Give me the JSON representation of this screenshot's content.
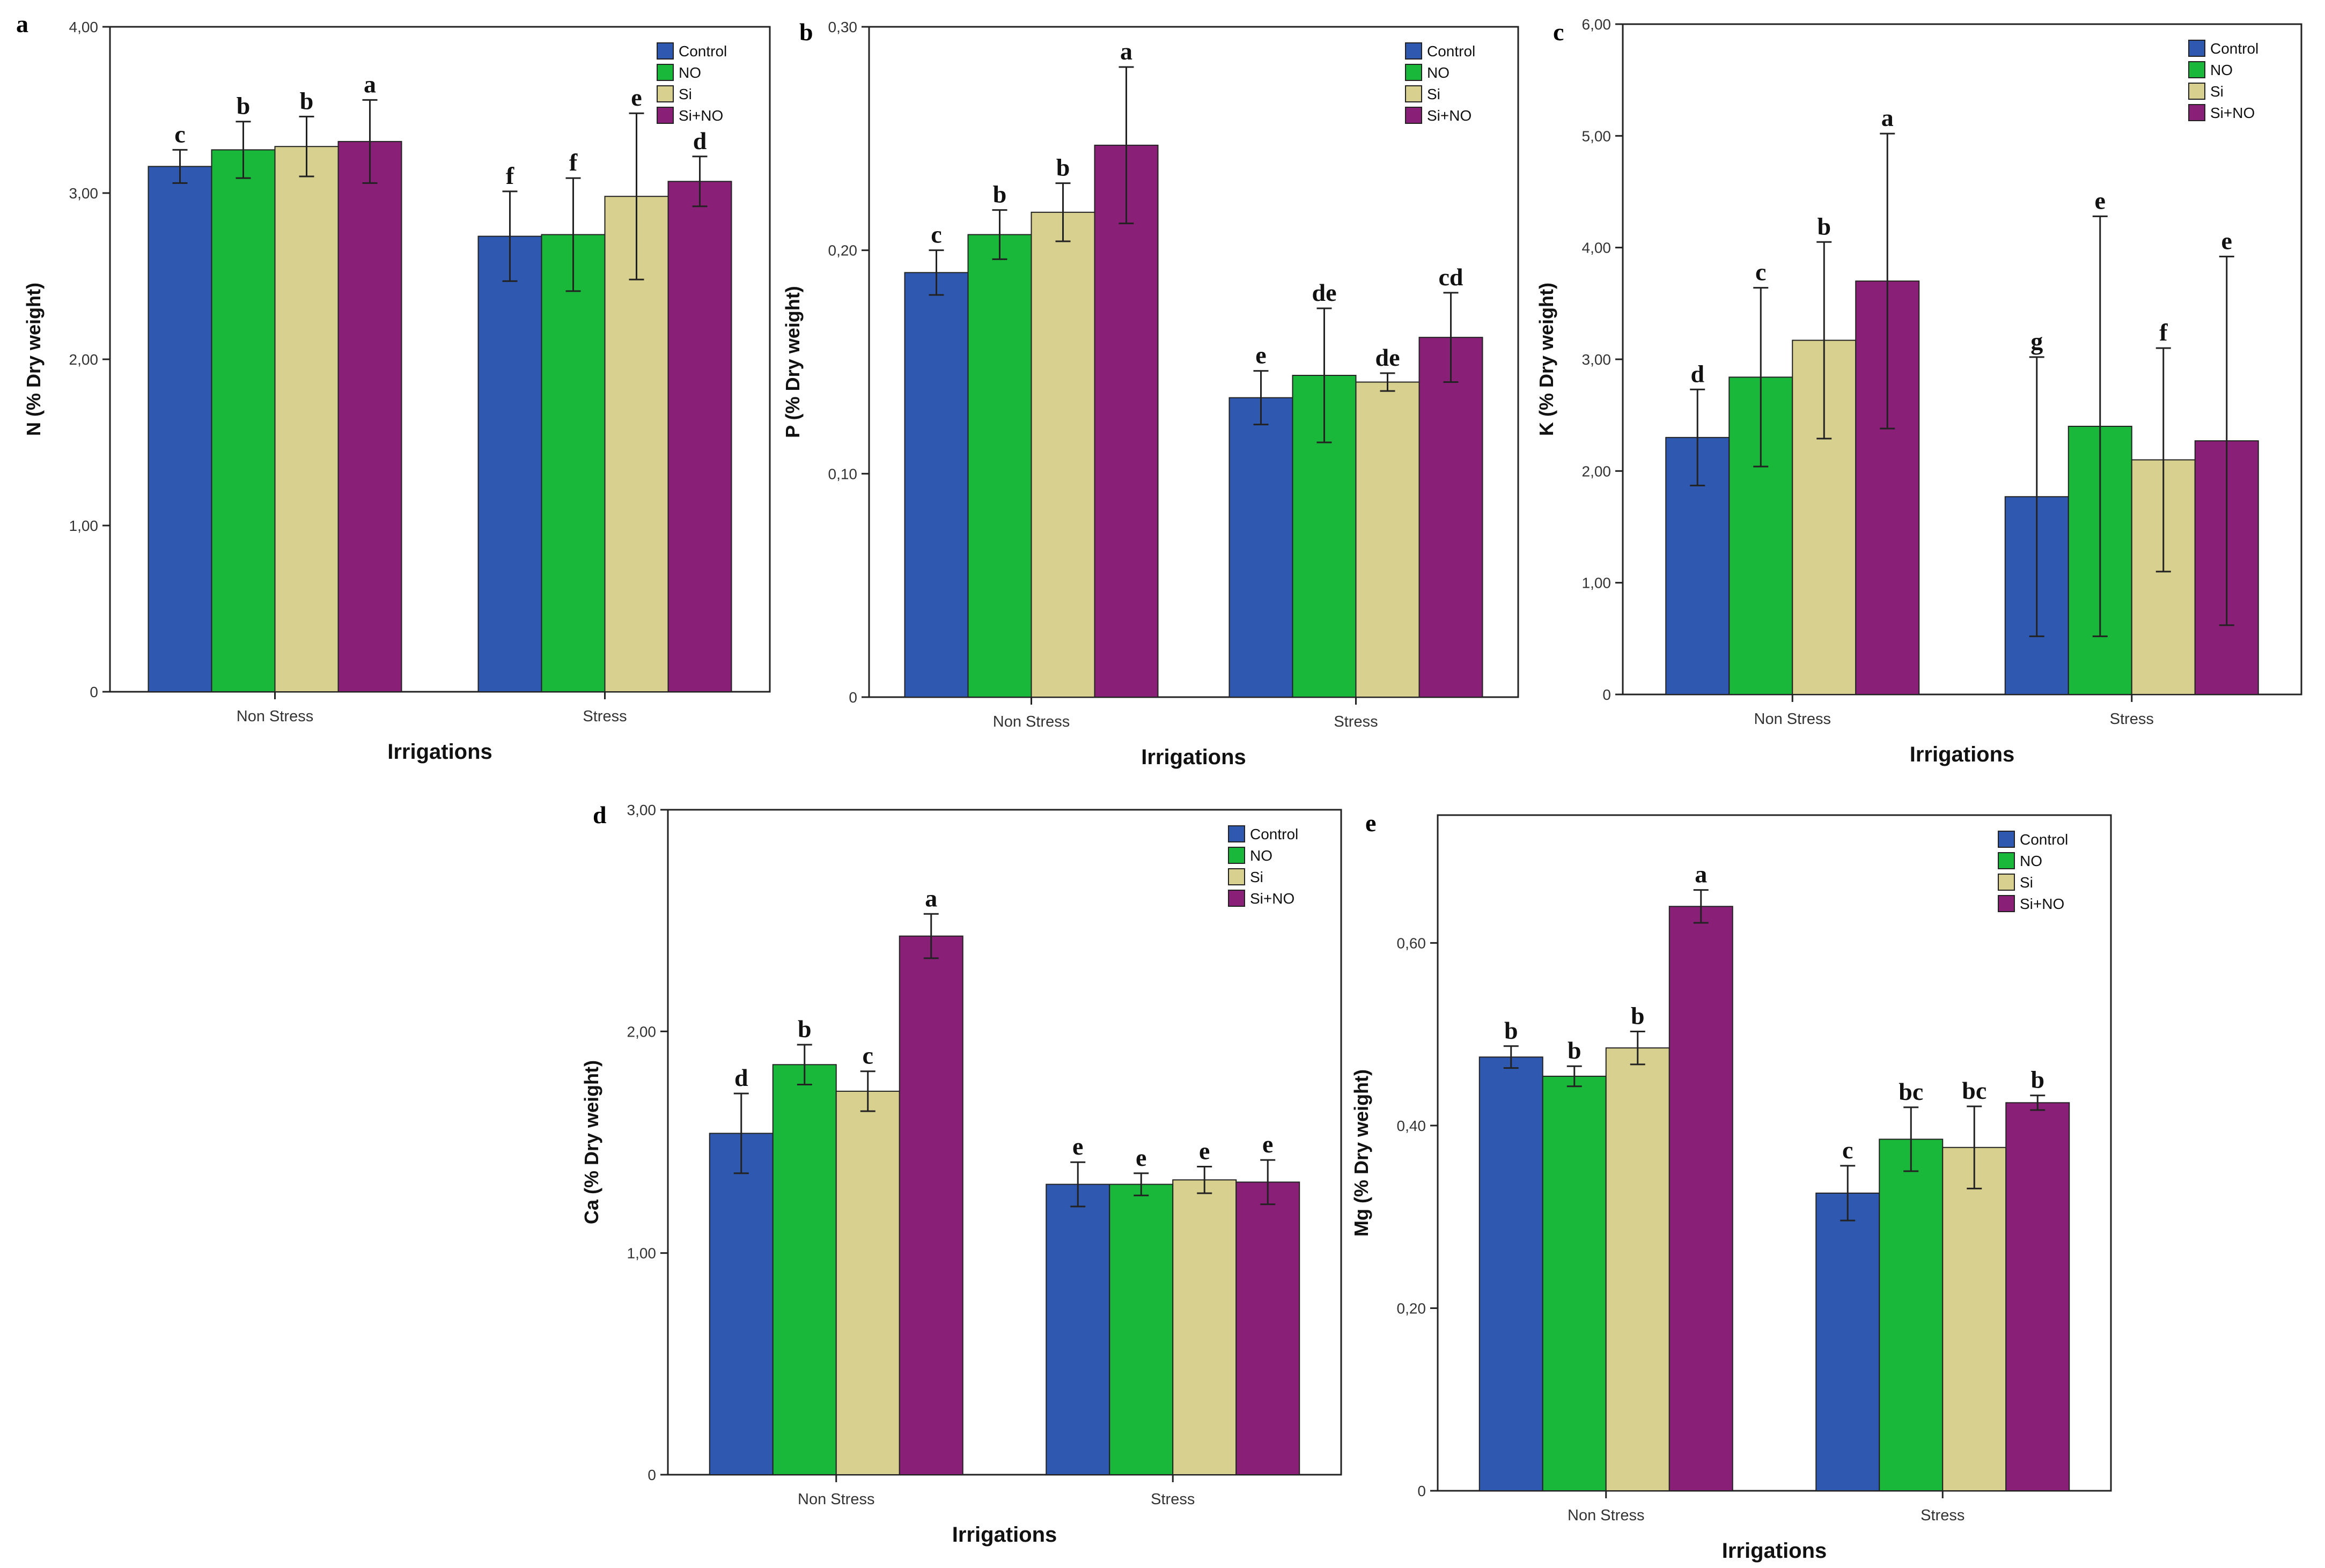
{
  "series_colors": [
    "#2f59b0",
    "#19b83a",
    "#d8d08e",
    "#8a1f77"
  ],
  "chart_data": [
    {
      "panel": "a",
      "type": "bar",
      "title": "",
      "xlabel": "Irrigations",
      "ylabel": "N (% Dry weight)",
      "ylim": [
        0,
        4
      ],
      "yticks": [
        0,
        1,
        2,
        3,
        4
      ],
      "ytick_labels": [
        "0",
        "1,00",
        "2,00",
        "3,00",
        "4,00"
      ],
      "categories": [
        "Non Stress",
        "Stress"
      ],
      "legend": [
        "Control",
        "NO",
        "Si",
        "Si+NO"
      ],
      "legend_position": "top-right",
      "series": [
        {
          "name": "Control",
          "values": [
            3.16,
            2.74
          ],
          "err": [
            0.1,
            0.27
          ],
          "letters": [
            "c",
            "f"
          ]
        },
        {
          "name": "NO",
          "values": [
            3.26,
            2.75
          ],
          "err": [
            0.17,
            0.34
          ],
          "letters": [
            "b",
            "f"
          ]
        },
        {
          "name": "Si",
          "values": [
            3.28,
            2.98
          ],
          "err": [
            0.18,
            0.5
          ],
          "letters": [
            "b",
            "e"
          ]
        },
        {
          "name": "Si+NO",
          "values": [
            3.31,
            3.07
          ],
          "err": [
            0.25,
            0.15
          ],
          "letters": [
            "a",
            "d"
          ]
        }
      ]
    },
    {
      "panel": "b",
      "type": "bar",
      "title": "",
      "xlabel": "Irrigations",
      "ylabel": "P (% Dry weight)",
      "ylim": [
        0,
        0.3
      ],
      "yticks": [
        0,
        0.1,
        0.2,
        0.3
      ],
      "ytick_labels": [
        "0",
        "0,10",
        "0,20",
        "0,30"
      ],
      "categories": [
        "Non Stress",
        "Stress"
      ],
      "legend": [
        "Control",
        "NO",
        "Si",
        "Si+NO"
      ],
      "legend_position": "top-right",
      "series": [
        {
          "name": "Control",
          "values": [
            0.19,
            0.134
          ],
          "err": [
            0.01,
            0.012
          ],
          "letters": [
            "c",
            "e"
          ]
        },
        {
          "name": "NO",
          "values": [
            0.207,
            0.144
          ],
          "err": [
            0.011,
            0.03
          ],
          "letters": [
            "b",
            "de"
          ]
        },
        {
          "name": "Si",
          "values": [
            0.217,
            0.141
          ],
          "err": [
            0.013,
            0.004
          ],
          "letters": [
            "b",
            "de"
          ]
        },
        {
          "name": "Si+NO",
          "values": [
            0.247,
            0.161
          ],
          "err": [
            0.035,
            0.02
          ],
          "letters": [
            "a",
            "cd"
          ]
        }
      ]
    },
    {
      "panel": "c",
      "type": "bar",
      "title": "",
      "xlabel": "Irrigations",
      "ylabel": "K (% Dry weight)",
      "ylim": [
        0,
        6
      ],
      "yticks": [
        0,
        1,
        2,
        3,
        4,
        5,
        6
      ],
      "ytick_labels": [
        "0",
        "1,00",
        "2,00",
        "3,00",
        "4,00",
        "5,00",
        "6,00"
      ],
      "categories": [
        "Non Stress",
        "Stress"
      ],
      "legend": [
        "Control",
        "NO",
        "Si",
        "Si+NO"
      ],
      "legend_position": "top-right",
      "series": [
        {
          "name": "Control",
          "values": [
            2.3,
            1.77
          ],
          "err": [
            0.43,
            1.25
          ],
          "letters": [
            "d",
            "g"
          ]
        },
        {
          "name": "NO",
          "values": [
            2.84,
            2.4
          ],
          "err": [
            0.8,
            1.88
          ],
          "letters": [
            "c",
            "e"
          ]
        },
        {
          "name": "Si",
          "values": [
            3.17,
            2.1
          ],
          "err": [
            0.88,
            1.0
          ],
          "letters": [
            "b",
            "f"
          ]
        },
        {
          "name": "Si+NO",
          "values": [
            3.7,
            2.27
          ],
          "err": [
            1.32,
            1.65
          ],
          "letters": [
            "a",
            "e"
          ]
        }
      ]
    },
    {
      "panel": "d",
      "type": "bar",
      "title": "",
      "xlabel": "Irrigations",
      "ylabel": "Ca (% Dry weight)",
      "ylim": [
        0,
        3
      ],
      "yticks": [
        0,
        1,
        2,
        3
      ],
      "ytick_labels": [
        "0",
        "1,00",
        "2,00",
        "3,00"
      ],
      "categories": [
        "Non Stress",
        "Stress"
      ],
      "legend": [
        "Control",
        "NO",
        "Si",
        "Si+NO"
      ],
      "legend_position": "top-right",
      "series": [
        {
          "name": "Control",
          "values": [
            1.54,
            1.31
          ],
          "err": [
            0.18,
            0.1
          ],
          "letters": [
            "d",
            "e"
          ]
        },
        {
          "name": "NO",
          "values": [
            1.85,
            1.31
          ],
          "err": [
            0.09,
            0.05
          ],
          "letters": [
            "b",
            "e"
          ]
        },
        {
          "name": "Si",
          "values": [
            1.73,
            1.33
          ],
          "err": [
            0.09,
            0.06
          ],
          "letters": [
            "c",
            "e"
          ]
        },
        {
          "name": "Si+NO",
          "values": [
            2.43,
            1.32
          ],
          "err": [
            0.1,
            0.1
          ],
          "letters": [
            "a",
            "e"
          ]
        }
      ]
    },
    {
      "panel": "e",
      "type": "bar",
      "title": "",
      "xlabel": "Irrigations",
      "ylabel": "Mg (% Dry weight)",
      "ylim": [
        0,
        0.74
      ],
      "yticks": [
        0,
        0.2,
        0.4,
        0.6
      ],
      "ytick_labels": [
        "0",
        "0,20",
        "0,40",
        "0,60"
      ],
      "categories": [
        "Non Stress",
        "Stress"
      ],
      "legend": [
        "Control",
        "NO",
        "Si",
        "Si+NO"
      ],
      "legend_position": "top-right",
      "series": [
        {
          "name": "Control",
          "values": [
            0.475,
            0.326
          ],
          "err": [
            0.012,
            0.03
          ],
          "letters": [
            "b",
            "c"
          ]
        },
        {
          "name": "NO",
          "values": [
            0.454,
            0.385
          ],
          "err": [
            0.011,
            0.035
          ],
          "letters": [
            "b",
            "bc"
          ]
        },
        {
          "name": "Si",
          "values": [
            0.485,
            0.376
          ],
          "err": [
            0.018,
            0.045
          ],
          "letters": [
            "b",
            "bc"
          ]
        },
        {
          "name": "Si+NO",
          "values": [
            0.64,
            0.425
          ],
          "err": [
            0.018,
            0.008
          ],
          "letters": [
            "a",
            "b"
          ]
        }
      ]
    }
  ]
}
